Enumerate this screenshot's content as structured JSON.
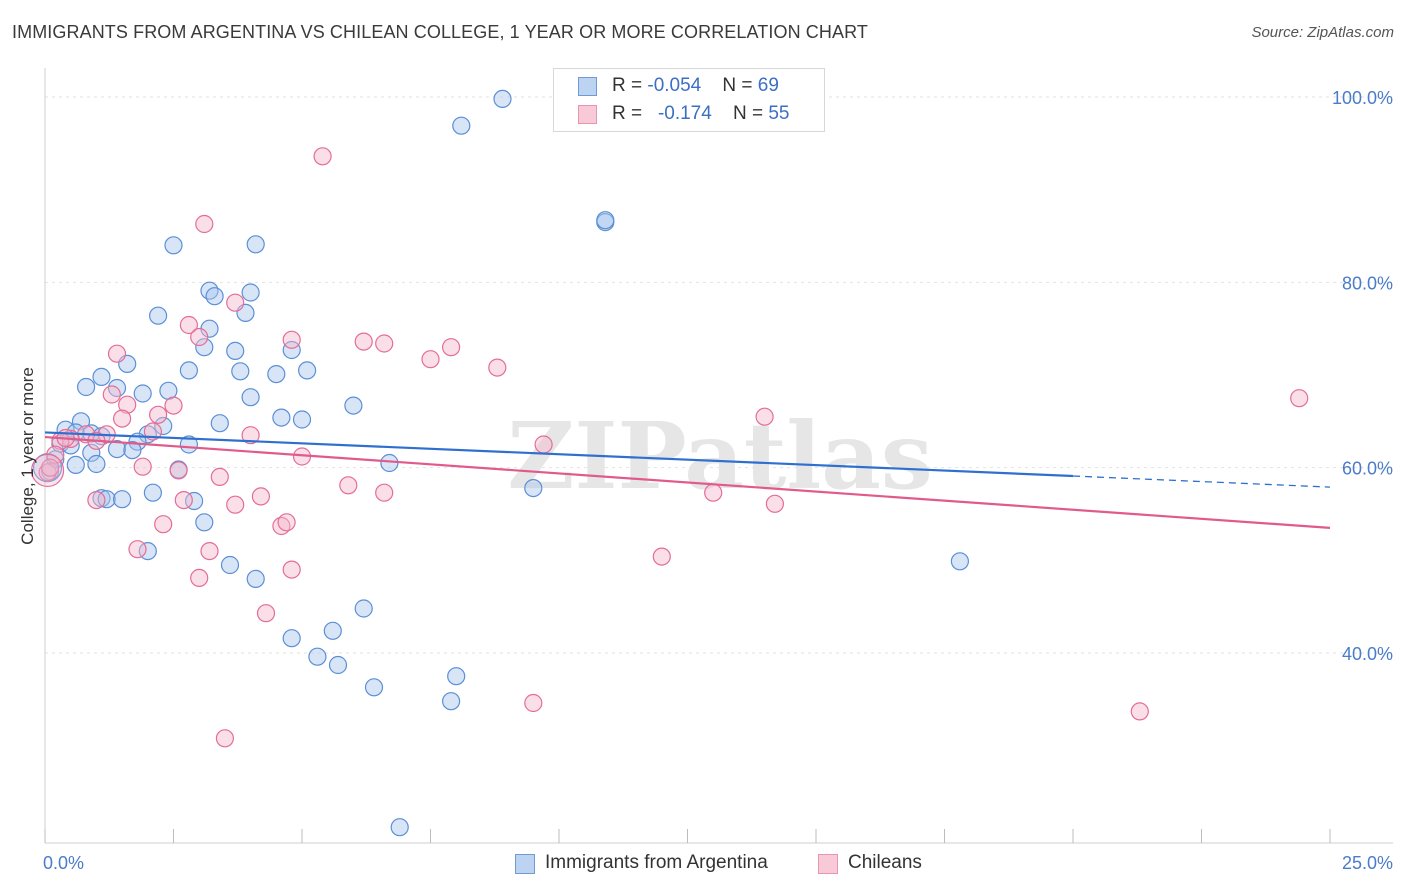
{
  "title": "IMMIGRANTS FROM ARGENTINA VS CHILEAN COLLEGE, 1 YEAR OR MORE CORRELATION CHART",
  "source": "Source: ZipAtlas.com",
  "watermark": "ZIPatlas",
  "legend": {
    "rows": [
      {
        "r_label": "R = ",
        "r_value": "-0.054",
        "n_label": "N = ",
        "n_value": "69"
      },
      {
        "r_label": "R = ",
        "r_value": "-0.174",
        "n_label": "N = ",
        "n_value": "55"
      }
    ]
  },
  "bottom_legend": [
    "Immigrants from Argentina",
    "Chileans"
  ],
  "chart_data": {
    "type": "scatter",
    "ylabel": "College, 1 year or more",
    "x_ticks": [
      "0.0%",
      "25.0%"
    ],
    "y_ticks": [
      "100.0%",
      "80.0%",
      "60.0%",
      "40.0%"
    ],
    "xlim": [
      0,
      25
    ],
    "ylim": [
      18,
      102
    ],
    "grid": true,
    "colors": {
      "blue": "#5b8fd6",
      "blue_fill": "#a9c6ee",
      "pink": "#e46d98",
      "pink_fill": "#f4b8cc"
    },
    "series": [
      {
        "name": "Immigrants from Argentina",
        "trend": {
          "x0": 0,
          "y0": 63.8,
          "x1": 20,
          "y1": 59.1,
          "dashed_to_x": 25,
          "dashed_to_y": 57.9
        },
        "points": [
          [
            8.9,
            99.8
          ],
          [
            8.1,
            96.9
          ],
          [
            10.9,
            86.5
          ],
          [
            10.9,
            86.7
          ],
          [
            2.5,
            84.0
          ],
          [
            4.1,
            84.1
          ],
          [
            3.2,
            79.1
          ],
          [
            4.0,
            78.9
          ],
          [
            3.3,
            78.5
          ],
          [
            3.9,
            76.7
          ],
          [
            2.2,
            76.4
          ],
          [
            3.2,
            75.0
          ],
          [
            3.1,
            73.0
          ],
          [
            3.7,
            72.6
          ],
          [
            4.8,
            72.7
          ],
          [
            1.6,
            71.2
          ],
          [
            2.8,
            70.5
          ],
          [
            3.8,
            70.4
          ],
          [
            4.5,
            70.1
          ],
          [
            5.1,
            70.5
          ],
          [
            1.1,
            69.8
          ],
          [
            0.8,
            68.7
          ],
          [
            1.4,
            68.6
          ],
          [
            1.9,
            68.0
          ],
          [
            2.4,
            68.3
          ],
          [
            4.0,
            67.6
          ],
          [
            6.0,
            66.7
          ],
          [
            4.6,
            65.4
          ],
          [
            5.0,
            65.2
          ],
          [
            0.7,
            65.0
          ],
          [
            3.4,
            64.8
          ],
          [
            2.3,
            64.5
          ],
          [
            0.4,
            64.1
          ],
          [
            0.6,
            63.8
          ],
          [
            0.9,
            63.7
          ],
          [
            1.1,
            63.4
          ],
          [
            2.0,
            63.6
          ],
          [
            1.8,
            62.8
          ],
          [
            0.3,
            62.6
          ],
          [
            0.5,
            62.4
          ],
          [
            2.8,
            62.5
          ],
          [
            1.4,
            62.0
          ],
          [
            1.7,
            61.9
          ],
          [
            0.9,
            61.6
          ],
          [
            0.2,
            60.9
          ],
          [
            1.0,
            60.4
          ],
          [
            0.6,
            60.3
          ],
          [
            6.7,
            60.5
          ],
          [
            2.6,
            59.8
          ],
          [
            0.1,
            59.6
          ],
          [
            9.5,
            57.8
          ],
          [
            2.1,
            57.3
          ],
          [
            1.1,
            56.7
          ],
          [
            1.2,
            56.6
          ],
          [
            1.5,
            56.6
          ],
          [
            2.9,
            56.4
          ],
          [
            3.1,
            54.1
          ],
          [
            2.0,
            51.0
          ],
          [
            3.6,
            49.5
          ],
          [
            4.1,
            48.0
          ],
          [
            17.8,
            49.9
          ],
          [
            6.2,
            44.8
          ],
          [
            5.6,
            42.4
          ],
          [
            4.8,
            41.6
          ],
          [
            5.3,
            39.6
          ],
          [
            5.7,
            38.7
          ],
          [
            8.0,
            37.5
          ],
          [
            6.4,
            36.3
          ],
          [
            7.9,
            34.8
          ],
          [
            6.9,
            21.2
          ]
        ]
      },
      {
        "name": "Chileans",
        "trend": {
          "x0": 0,
          "y0": 63.3,
          "x1": 25,
          "y1": 53.5
        },
        "points": [
          [
            5.4,
            93.6
          ],
          [
            3.1,
            86.3
          ],
          [
            3.7,
            77.8
          ],
          [
            2.8,
            75.4
          ],
          [
            3.0,
            74.1
          ],
          [
            4.8,
            73.8
          ],
          [
            6.2,
            73.6
          ],
          [
            6.6,
            73.4
          ],
          [
            7.9,
            73.0
          ],
          [
            1.4,
            72.3
          ],
          [
            7.5,
            71.7
          ],
          [
            8.8,
            70.8
          ],
          [
            1.3,
            67.9
          ],
          [
            2.5,
            66.7
          ],
          [
            1.6,
            66.8
          ],
          [
            24.4,
            67.5
          ],
          [
            1.5,
            65.3
          ],
          [
            14.0,
            65.5
          ],
          [
            2.2,
            65.7
          ],
          [
            0.8,
            63.6
          ],
          [
            1.2,
            63.6
          ],
          [
            2.1,
            63.9
          ],
          [
            4.0,
            63.5
          ],
          [
            0.5,
            63.1
          ],
          [
            1.0,
            62.9
          ],
          [
            0.3,
            62.9
          ],
          [
            9.7,
            62.5
          ],
          [
            0.2,
            61.4
          ],
          [
            5.0,
            61.2
          ],
          [
            1.9,
            60.1
          ],
          [
            2.6,
            59.7
          ],
          [
            0.05,
            59.5
          ],
          [
            3.4,
            59.0
          ],
          [
            5.9,
            58.1
          ],
          [
            6.6,
            57.3
          ],
          [
            13.0,
            57.3
          ],
          [
            4.2,
            56.9
          ],
          [
            1.0,
            56.5
          ],
          [
            2.7,
            56.5
          ],
          [
            3.7,
            56.0
          ],
          [
            14.2,
            56.1
          ],
          [
            4.6,
            53.7
          ],
          [
            4.7,
            54.1
          ],
          [
            2.3,
            53.9
          ],
          [
            1.8,
            51.2
          ],
          [
            3.2,
            51.0
          ],
          [
            12.0,
            50.4
          ],
          [
            4.8,
            49.0
          ],
          [
            3.0,
            48.1
          ],
          [
            4.3,
            44.3
          ],
          [
            9.5,
            34.6
          ],
          [
            21.3,
            33.7
          ],
          [
            3.5,
            30.8
          ],
          [
            0.1,
            60.0
          ],
          [
            0.4,
            63.2
          ]
        ]
      }
    ]
  }
}
